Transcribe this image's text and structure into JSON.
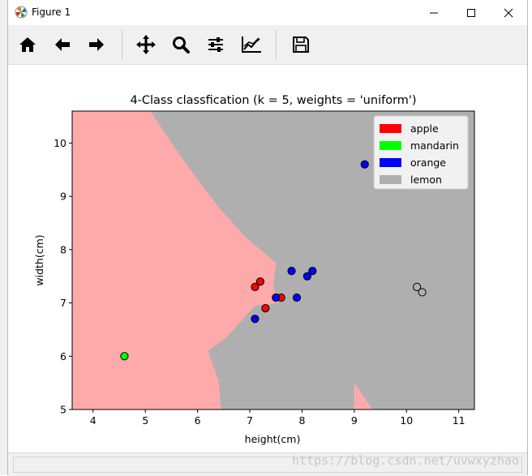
{
  "window": {
    "title": "Figure 1"
  },
  "toolbar": {
    "buttons": [
      {
        "icon": "home-icon"
      },
      {
        "icon": "back-arrow-icon"
      },
      {
        "icon": "forward-arrow-icon"
      },
      {
        "icon": "pan-icon"
      },
      {
        "icon": "zoom-icon"
      },
      {
        "icon": "configure-subplots-icon"
      },
      {
        "icon": "edit-axis-icon"
      },
      {
        "icon": "save-icon"
      }
    ]
  },
  "status": {
    "watermark": "https://blog.csdn.net/uvwxyzhao"
  },
  "chart_data": {
    "type": "scatter",
    "title": "4-Class classfication (k = 5, weights = 'uniform')",
    "xlabel": "height(cm)",
    "ylabel": "width(cm)",
    "xlim": [
      3.6,
      11.3
    ],
    "ylim": [
      5.0,
      10.6
    ],
    "xticks": [
      "4",
      "5",
      "6",
      "7",
      "8",
      "9",
      "10",
      "11"
    ],
    "yticks": [
      "5",
      "6",
      "7",
      "8",
      "9",
      "10"
    ],
    "legend_position": "top-right",
    "legend": [
      {
        "label": "apple",
        "color": "#ff0000"
      },
      {
        "label": "mandarin",
        "color": "#00ff00"
      },
      {
        "label": "orange",
        "color": "#0000ff"
      },
      {
        "label": "lemon",
        "color": "#afafaf"
      }
    ],
    "region_colors": {
      "apple": "#ffaaaa",
      "lemon": "#afafaf"
    },
    "points": [
      {
        "x": 7.1,
        "y": 7.3,
        "cls": "apple"
      },
      {
        "x": 7.2,
        "y": 7.4,
        "cls": "apple"
      },
      {
        "x": 7.3,
        "y": 6.9,
        "cls": "apple"
      },
      {
        "x": 7.6,
        "y": 7.1,
        "cls": "apple"
      },
      {
        "x": 4.6,
        "y": 6.0,
        "cls": "mandarin"
      },
      {
        "x": 9.2,
        "y": 9.6,
        "cls": "orange"
      },
      {
        "x": 7.8,
        "y": 7.6,
        "cls": "orange"
      },
      {
        "x": 8.2,
        "y": 7.6,
        "cls": "orange"
      },
      {
        "x": 8.1,
        "y": 7.5,
        "cls": "orange"
      },
      {
        "x": 7.9,
        "y": 7.1,
        "cls": "orange"
      },
      {
        "x": 7.5,
        "y": 7.1,
        "cls": "orange"
      },
      {
        "x": 7.1,
        "y": 6.7,
        "cls": "orange"
      },
      {
        "x": 10.2,
        "y": 7.3,
        "cls": "lemon"
      },
      {
        "x": 10.3,
        "y": 7.2,
        "cls": "lemon"
      }
    ],
    "apple_region": [
      [
        3.6,
        10.6
      ],
      [
        5.1,
        10.6
      ],
      [
        5.5,
        10.0
      ],
      [
        5.9,
        9.45
      ],
      [
        6.4,
        8.8
      ],
      [
        6.9,
        8.25
      ],
      [
        7.5,
        7.75
      ],
      [
        7.45,
        7.3
      ],
      [
        7.55,
        7.0
      ],
      [
        7.1,
        6.95
      ],
      [
        6.55,
        6.35
      ],
      [
        6.2,
        6.1
      ],
      [
        6.4,
        5.55
      ],
      [
        6.45,
        5.0
      ],
      [
        3.6,
        5.0
      ]
    ],
    "apple_region_small": [
      [
        9.0,
        5.0
      ],
      [
        9.0,
        5.5
      ],
      [
        9.35,
        5.0
      ]
    ]
  }
}
